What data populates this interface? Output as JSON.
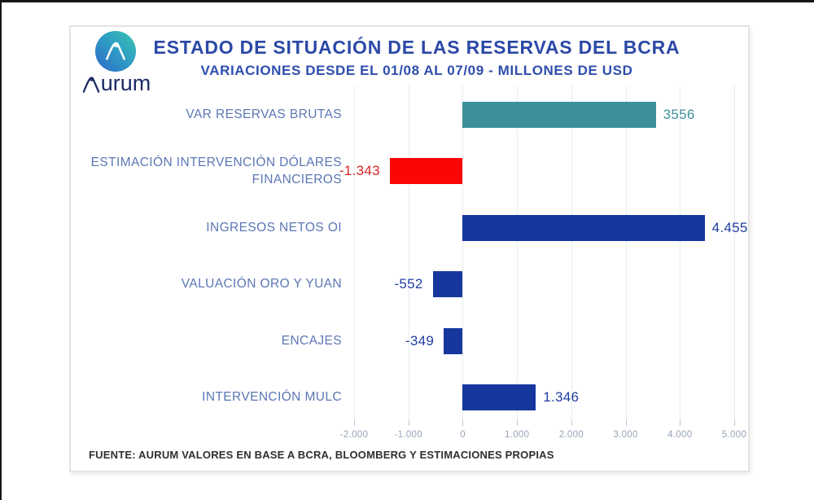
{
  "page": {
    "frame_color": "#161616"
  },
  "logo": {
    "brand": "Aurum",
    "wordmark_rest": "urum",
    "icon": "aurum-a-loop-icon",
    "icon_gradient": [
      "#2e72c8",
      "#38c2b2"
    ],
    "wordmark_color": "#1c2a66"
  },
  "header": {
    "title": "ESTADO DE SITUACIÓN DE LAS RESERVAS DEL BCRA",
    "subtitle": "VARIACIONES DESDE EL 01/08 AL 07/09 - MILLONES DE USD",
    "title_color": "#2b49a7"
  },
  "chart_data": {
    "type": "bar",
    "orientation": "horizontal",
    "title": "ESTADO DE SITUACIÓN DE LAS RESERVAS DEL BCRA",
    "subtitle": "VARIACIONES DESDE EL 01/08 AL 07/09 - MILLONES DE USD",
    "unit": "MILLONES DE USD",
    "categories": [
      "VAR RESERVAS BRUTAS",
      "ESTIMACIÓN INTERVENCIÓN DÓLARES FINANCIEROS",
      "INGRESOS NETOS OI",
      "VALUACIÓN ORO Y YUAN",
      "ENCAJES",
      "INTERVENCIÓN MULC"
    ],
    "values": [
      3556,
      -1343,
      4455,
      -552,
      -349,
      1346
    ],
    "value_labels": [
      "3556",
      "-1.343",
      "4.455",
      "-552",
      "-349",
      "1.346"
    ],
    "bar_colors": [
      "#3d919c",
      "#fb0505",
      "#16379d",
      "#16379d",
      "#16379d",
      "#16379d"
    ],
    "value_label_colors": [
      "#3d919c",
      "#d32525",
      "#1f3f9e",
      "#1f3f9e",
      "#1f3f9e",
      "#1f3f9e"
    ],
    "category_label_color": "#5b77b5",
    "xlim": [
      -2000,
      5000
    ],
    "x_ticks": [
      -2000,
      -1000,
      0,
      1000,
      2000,
      3000,
      4000,
      5000
    ],
    "x_tick_labels": [
      "-2.000",
      "-1.000",
      "0",
      "1.000",
      "2.000",
      "3.000",
      "4.000",
      "5.000"
    ],
    "grid": true,
    "gridline_color": "#e8ebf1",
    "axis_label_color": "#97a3b8",
    "legend": false
  },
  "footer": {
    "source": "FUENTE: AURUM VALORES EN BASE A BCRA, BLOOMBERG Y ESTIMACIONES PROPIAS"
  }
}
